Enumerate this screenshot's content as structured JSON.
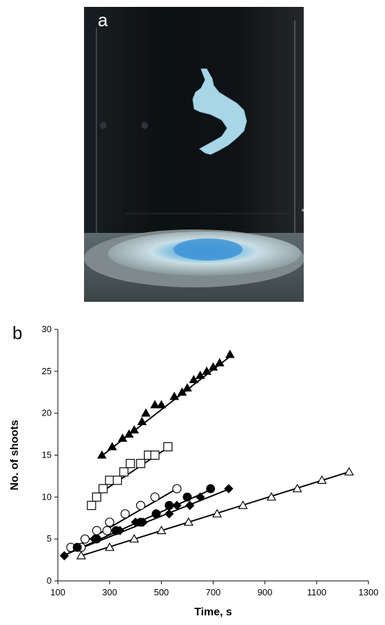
{
  "panel_a": {
    "label": "a"
  },
  "panel_b": {
    "label": "b"
  },
  "chart_data": {
    "type": "scatter",
    "xlabel": "Time, s",
    "ylabel": "No. of shoots",
    "xlim": [
      100,
      1300
    ],
    "ylim": [
      0,
      30
    ],
    "xticks": [
      100,
      300,
      500,
      700,
      900,
      1100,
      1300
    ],
    "yticks": [
      0,
      5,
      10,
      15,
      20,
      25,
      30
    ],
    "grid": false,
    "series": [
      {
        "marker": "filled-triangle",
        "color": "#000000",
        "points": [
          [
            270,
            15
          ],
          [
            310,
            16
          ],
          [
            350,
            17
          ],
          [
            375,
            17.5
          ],
          [
            395,
            18
          ],
          [
            425,
            19
          ],
          [
            440,
            20
          ],
          [
            475,
            21
          ],
          [
            500,
            21
          ],
          [
            550,
            22
          ],
          [
            580,
            22.5
          ],
          [
            600,
            23
          ],
          [
            625,
            24
          ],
          [
            650,
            24.5
          ],
          [
            675,
            25
          ],
          [
            700,
            25.5
          ],
          [
            725,
            26
          ],
          [
            765,
            27
          ]
        ],
        "fit": [
          [
            265,
            14.8
          ],
          [
            775,
            27
          ]
        ]
      },
      {
        "marker": "open-square",
        "color": "#000000",
        "points": [
          [
            230,
            9
          ],
          [
            250,
            10
          ],
          [
            275,
            11
          ],
          [
            300,
            12
          ],
          [
            330,
            12
          ],
          [
            355,
            13
          ],
          [
            380,
            14
          ],
          [
            420,
            14
          ],
          [
            450,
            15
          ],
          [
            475,
            15
          ],
          [
            525,
            16
          ]
        ],
        "fit": [
          [
            240,
            10
          ],
          [
            530,
            16
          ]
        ]
      },
      {
        "marker": "open-circle",
        "color": "#000000",
        "points": [
          [
            150,
            4
          ],
          [
            190,
            4
          ],
          [
            205,
            5
          ],
          [
            250,
            6
          ],
          [
            290,
            6
          ],
          [
            300,
            7
          ],
          [
            360,
            8
          ],
          [
            420,
            9
          ],
          [
            475,
            10
          ],
          [
            560,
            11
          ]
        ],
        "fit": [
          [
            140,
            3.5
          ],
          [
            560,
            11
          ]
        ]
      },
      {
        "marker": "filled-circle",
        "color": "#000000",
        "points": [
          [
            175,
            4
          ],
          [
            250,
            5
          ],
          [
            325,
            6
          ],
          [
            420,
            7
          ],
          [
            480,
            8
          ],
          [
            530,
            9
          ],
          [
            600,
            10
          ],
          [
            690,
            11
          ]
        ],
        "fit": [
          [
            170,
            3.7
          ],
          [
            700,
            11
          ]
        ]
      },
      {
        "marker": "filled-diamond",
        "color": "#000000",
        "points": [
          [
            125,
            3
          ],
          [
            240,
            5
          ],
          [
            340,
            6
          ],
          [
            400,
            7
          ],
          [
            430,
            7
          ],
          [
            530,
            8
          ],
          [
            560,
            9
          ],
          [
            610,
            9
          ],
          [
            650,
            10
          ],
          [
            760,
            11
          ]
        ],
        "fit": [
          [
            125,
            3.1
          ],
          [
            765,
            11
          ]
        ]
      },
      {
        "marker": "open-triangle",
        "color": "#000000",
        "points": [
          [
            190,
            3
          ],
          [
            300,
            4
          ],
          [
            395,
            5
          ],
          [
            500,
            6
          ],
          [
            605,
            7
          ],
          [
            715,
            8
          ],
          [
            815,
            9
          ],
          [
            925,
            10
          ],
          [
            1025,
            11
          ],
          [
            1120,
            12
          ],
          [
            1225,
            13
          ]
        ],
        "fit": [
          [
            190,
            3
          ],
          [
            1225,
            13
          ]
        ]
      }
    ]
  }
}
